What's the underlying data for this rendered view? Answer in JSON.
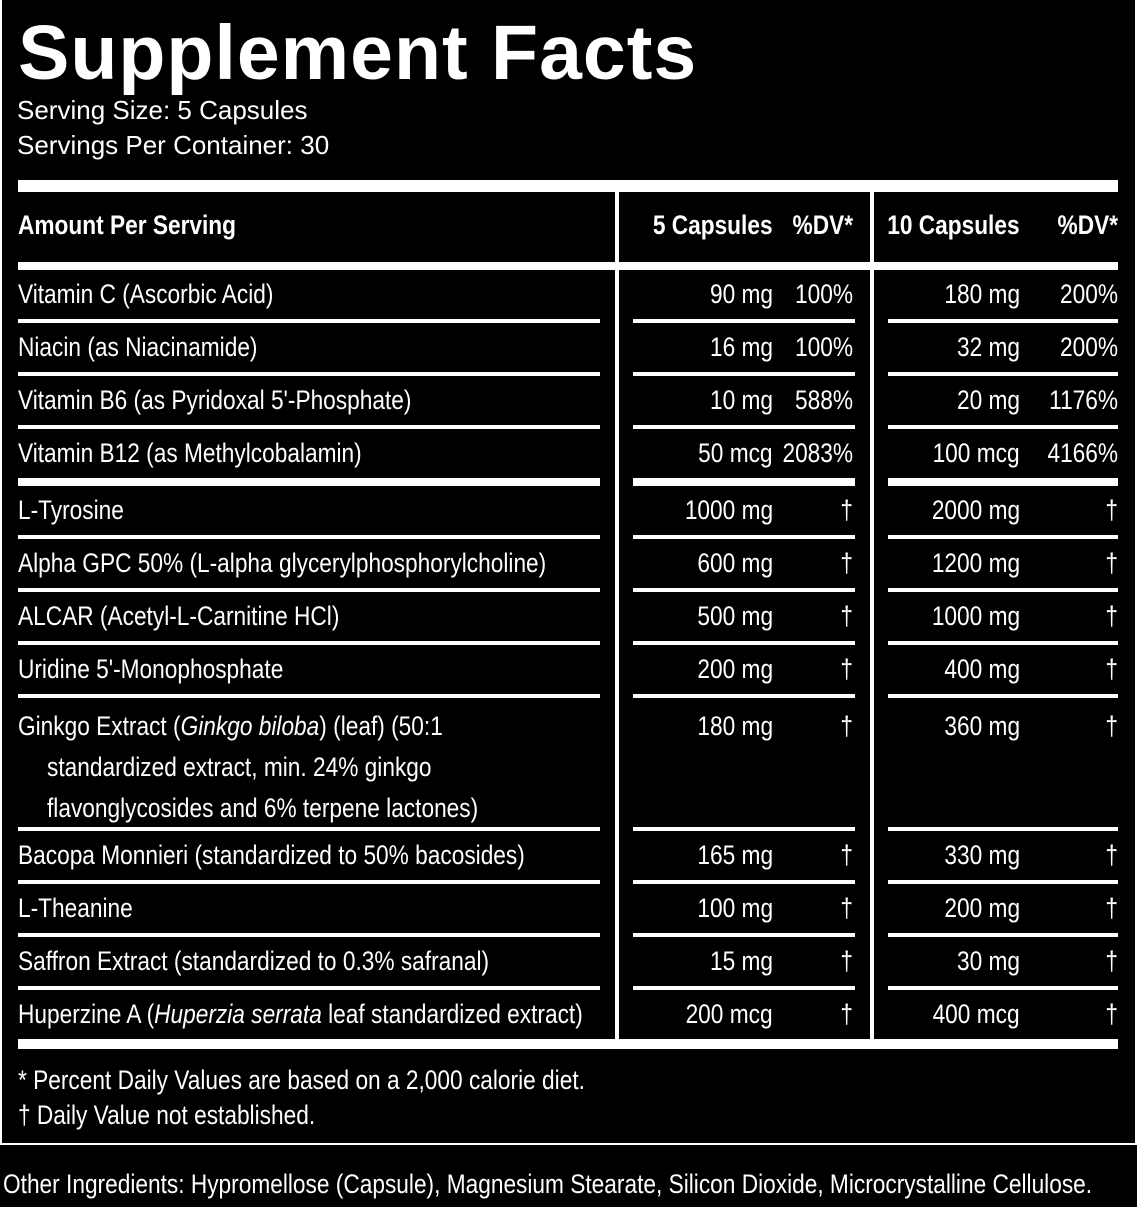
{
  "title": "Supplement Facts",
  "serving_size": "Serving Size: 5 Capsules",
  "servings_per_container": "Servings Per Container: 30",
  "header": {
    "amount_per_serving": "Amount Per Serving",
    "col1_amount": "5 Capsules",
    "col1_dv": "%DV*",
    "col2_amount": "10 Capsules",
    "col2_dv": "%DV*"
  },
  "rows": [
    {
      "name": [
        [
          {
            "t": "Vitamin C (Ascorbic Acid)"
          }
        ]
      ],
      "a5": "90 mg",
      "d5": "100%",
      "a10": "180 mg",
      "d10": "200%"
    },
    {
      "name": [
        [
          {
            "t": "Niacin (as Niacinamide)"
          }
        ]
      ],
      "a5": "16 mg",
      "d5": "100%",
      "a10": "32 mg",
      "d10": "200%"
    },
    {
      "name": [
        [
          {
            "t": "Vitamin B6 (as Pyridoxal 5'-Phosphate)"
          }
        ]
      ],
      "a5": "10 mg",
      "d5": "588%",
      "a10": "20 mg",
      "d10": "1176%"
    },
    {
      "name": [
        [
          {
            "t": "Vitamin B12 (as Methylcobalamin)"
          }
        ]
      ],
      "a5": "50 mcg",
      "d5": "2083%",
      "a10": "100 mcg",
      "d10": "4166%",
      "thick": true
    },
    {
      "name": [
        [
          {
            "t": "L-Tyrosine"
          }
        ]
      ],
      "a5": "1000 mg",
      "d5": "†",
      "a10": "2000 mg",
      "d10": "†"
    },
    {
      "name": [
        [
          {
            "t": "Alpha GPC 50% (L-alpha glycerylphosphorylcholine)"
          }
        ]
      ],
      "a5": "600 mg",
      "d5": "†",
      "a10": "1200 mg",
      "d10": "†"
    },
    {
      "name": [
        [
          {
            "t": "ALCAR (Acetyl-L-Carnitine HCl)"
          }
        ]
      ],
      "a5": "500 mg",
      "d5": "†",
      "a10": "1000 mg",
      "d10": "†"
    },
    {
      "name": [
        [
          {
            "t": "Uridine 5'-Monophosphate"
          }
        ]
      ],
      "a5": "200 mg",
      "d5": "†",
      "a10": "400 mg",
      "d10": "†"
    },
    {
      "name": [
        [
          {
            "t": "Ginkgo Extract ("
          },
          {
            "t": "Ginkgo biloba",
            "i": true
          },
          {
            "t": ") (leaf) (50:1"
          }
        ],
        [
          {
            "t": "standardized extract, min. 24% ginkgo"
          }
        ],
        [
          {
            "t": "flavonglycosides and 6% terpene lactones)"
          }
        ]
      ],
      "a5": "180 mg",
      "d5": "†",
      "a10": "360 mg",
      "d10": "†"
    },
    {
      "name": [
        [
          {
            "t": "Bacopa Monnieri (standardized to 50% bacosides)"
          }
        ]
      ],
      "a5": "165 mg",
      "d5": "†",
      "a10": "330 mg",
      "d10": "†"
    },
    {
      "name": [
        [
          {
            "t": "L-Theanine"
          }
        ]
      ],
      "a5": "100 mg",
      "d5": "†",
      "a10": "200 mg",
      "d10": "†"
    },
    {
      "name": [
        [
          {
            "t": "Saffron Extract (standardized to 0.3% safranal)"
          }
        ]
      ],
      "a5": "15 mg",
      "d5": "†",
      "a10": "30 mg",
      "d10": "†"
    },
    {
      "name": [
        [
          {
            "t": "Huperzine A ("
          },
          {
            "t": "Huperzia serrata",
            "i": true
          },
          {
            "t": " leaf standardized extract)"
          }
        ]
      ],
      "a5": "200 mcg",
      "d5": "†",
      "a10": "400 mcg",
      "d10": "†",
      "last": true
    }
  ],
  "footnotes": {
    "dv": "* Percent Daily Values are based on a 2,000 calorie diet.",
    "dagger": "† Daily Value not established."
  },
  "other_ingredients": "Other Ingredients: Hypromellose (Capsule), Magnesium Stearate, Silicon Dioxide, Microcrystalline Cellulose."
}
